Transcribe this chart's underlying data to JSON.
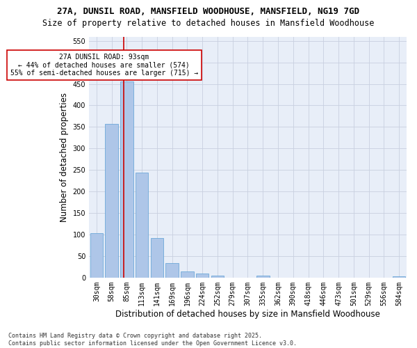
{
  "title_line1": "27A, DUNSIL ROAD, MANSFIELD WOODHOUSE, MANSFIELD, NG19 7GD",
  "title_line2": "Size of property relative to detached houses in Mansfield Woodhouse",
  "xlabel": "Distribution of detached houses by size in Mansfield Woodhouse",
  "ylabel": "Number of detached properties",
  "footer": "Contains HM Land Registry data © Crown copyright and database right 2025.\nContains public sector information licensed under the Open Government Licence v3.0.",
  "bin_labels": [
    "30sqm",
    "58sqm",
    "85sqm",
    "113sqm",
    "141sqm",
    "169sqm",
    "196sqm",
    "224sqm",
    "252sqm",
    "279sqm",
    "307sqm",
    "335sqm",
    "362sqm",
    "390sqm",
    "418sqm",
    "446sqm",
    "473sqm",
    "501sqm",
    "529sqm",
    "556sqm",
    "584sqm"
  ],
  "bar_values": [
    104,
    357,
    455,
    244,
    92,
    33,
    14,
    9,
    5,
    0,
    0,
    5,
    0,
    0,
    0,
    0,
    0,
    0,
    0,
    0,
    3
  ],
  "bar_color": "#aec6e8",
  "bar_edge_color": "#5a9fd4",
  "subject_line_color": "#cc0000",
  "annotation_line1": "27A DUNSIL ROAD: 93sqm",
  "annotation_line2": "← 44% of detached houses are smaller (574)",
  "annotation_line3": "55% of semi-detached houses are larger (715) →",
  "annotation_box_color": "#cc0000",
  "ylim": [
    0,
    560
  ],
  "yticks": [
    0,
    50,
    100,
    150,
    200,
    250,
    300,
    350,
    400,
    450,
    500,
    550
  ],
  "bg_color": "#e8eef8",
  "grid_color": "#c8d0e0",
  "title_fontsize": 9,
  "subtitle_fontsize": 8.5,
  "axis_label_fontsize": 8.5,
  "tick_fontsize": 7,
  "annotation_fontsize": 7,
  "footer_fontsize": 6
}
